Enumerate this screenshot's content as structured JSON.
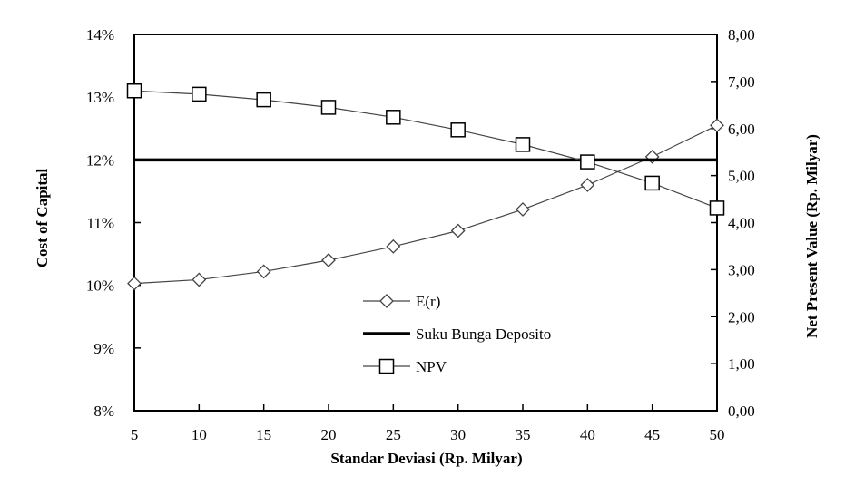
{
  "chart_data": {
    "type": "line",
    "title": "",
    "xlabel": "Standar Deviasi (Rp. Milyar)",
    "ylabel_left": "Cost of Capital",
    "ylabel_right": "Net Present Value (Rp. Milyar)",
    "x": [
      5,
      10,
      15,
      20,
      25,
      30,
      35,
      40,
      45,
      50
    ],
    "x_tick_labels": [
      "5",
      "10",
      "15",
      "20",
      "25",
      "30",
      "35",
      "40",
      "45",
      "50"
    ],
    "ylim_left": [
      0.08,
      0.14
    ],
    "ylim_right": [
      0,
      8
    ],
    "y_left_tick_values": [
      0.08,
      0.09,
      0.1,
      0.11,
      0.12,
      0.13,
      0.14
    ],
    "y_left_tick_labels": [
      "8%",
      "9%",
      "10%",
      "11%",
      "12%",
      "13%",
      "14%"
    ],
    "y_right_tick_values": [
      0,
      1,
      2,
      3,
      4,
      5,
      6,
      7,
      8
    ],
    "y_right_tick_labels": [
      "0,00",
      "1,00",
      "2,00",
      "3,00",
      "4,00",
      "5,00",
      "6,00",
      "7,00",
      "8,00"
    ],
    "grid": false,
    "legend_position": "center",
    "series": [
      {
        "name": "E(r)",
        "axis": "left",
        "marker": "diamond",
        "values": [
          0.1003,
          0.1009,
          0.1022,
          0.104,
          0.1062,
          0.1087,
          0.1121,
          0.116,
          0.1205,
          0.1255
        ]
      },
      {
        "name": "Suku Bunga Deposito",
        "axis": "left",
        "marker": "none",
        "values": [
          0.12,
          0.12,
          0.12,
          0.12,
          0.12,
          0.12,
          0.12,
          0.12,
          0.12,
          0.12
        ]
      },
      {
        "name": "NPV",
        "axis": "right",
        "marker": "square",
        "values": [
          6.8,
          6.73,
          6.61,
          6.45,
          6.24,
          5.97,
          5.66,
          5.29,
          4.84,
          4.31
        ]
      }
    ]
  }
}
